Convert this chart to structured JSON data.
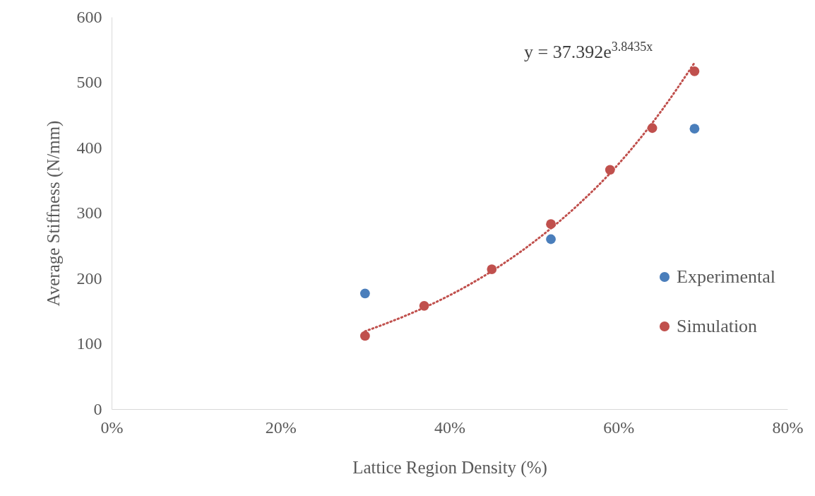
{
  "chart_data": {
    "type": "scatter",
    "xlabel": "Lattice Region Density (%)",
    "ylabel": "Average Stiffness (N/mm)",
    "xlim": [
      0,
      80
    ],
    "xticks": [
      {
        "value": 0,
        "label": "0%"
      },
      {
        "value": 20,
        "label": "20%"
      },
      {
        "value": 40,
        "label": "40%"
      },
      {
        "value": 60,
        "label": "60%"
      },
      {
        "value": 80,
        "label": "80%"
      }
    ],
    "ylim": [
      0,
      600
    ],
    "yticks": [
      0,
      100,
      200,
      300,
      400,
      500,
      600
    ],
    "grid": false,
    "legend": "right",
    "marker": "circle",
    "annotations": [
      "y = 37.392e$^{3.8435x}$"
    ],
    "series": [
      {
        "name": "Experimental",
        "color": "#4a7ebb",
        "x": [
          30,
          52,
          69
        ],
        "values": [
          177,
          260,
          429
        ]
      },
      {
        "name": "Simulation",
        "color": "#c0504d",
        "x": [
          30,
          37,
          45,
          52,
          59,
          64,
          69
        ],
        "values": [
          112,
          158,
          214,
          283,
          366,
          430,
          517
        ]
      },
      {
        "type": "line",
        "color": "#c0504d",
        "line_style": "dotted",
        "marker": "none",
        "x": [
          30,
          35,
          40,
          45,
          50,
          55,
          60,
          65,
          69
        ],
        "values": [
          119,
          144,
          174,
          211,
          256,
          310,
          375,
          455,
          530
        ]
      }
    ]
  }
}
